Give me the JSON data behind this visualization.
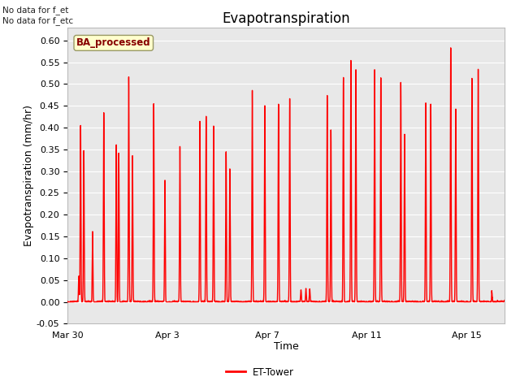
{
  "title": "Evapotranspiration",
  "xlabel": "Time",
  "ylabel": "Evapotranspiration (mm/hr)",
  "ylim": [
    -0.05,
    0.63
  ],
  "yticks": [
    -0.05,
    0.0,
    0.05,
    0.1,
    0.15,
    0.2,
    0.25,
    0.3,
    0.35,
    0.4,
    0.45,
    0.5,
    0.55,
    0.6
  ],
  "line_color": "#ff0000",
  "line_width": 1.0,
  "background_color": "#ffffff",
  "plot_bg_color": "#e8e8e8",
  "grid_color": "#ffffff",
  "legend_label": "ET-Tower",
  "annotation_text": "No data for f_et\nNo data for f_etc",
  "badge_text": "BA_processed",
  "badge_bg": "#ffffcc",
  "badge_edge": "#999966",
  "xtick_labels": [
    "Mar 30",
    "Apr 3",
    "Apr 7",
    "Apr 11",
    "Apr 15"
  ],
  "xtick_positions": [
    0.0,
    4.0,
    8.0,
    12.0,
    16.0
  ],
  "total_days": 17.5,
  "title_fontsize": 12,
  "axis_fontsize": 9,
  "tick_fontsize": 8,
  "peaks": [
    {
      "day": 0.45,
      "val": 0.06
    },
    {
      "day": 0.52,
      "val": 0.41
    },
    {
      "day": 0.65,
      "val": 0.35
    },
    {
      "day": 1.0,
      "val": 0.17
    },
    {
      "day": 1.45,
      "val": 0.44
    },
    {
      "day": 1.95,
      "val": 0.37
    },
    {
      "day": 2.05,
      "val": 0.35
    },
    {
      "day": 2.45,
      "val": 0.52
    },
    {
      "day": 2.6,
      "val": 0.34
    },
    {
      "day": 3.45,
      "val": 0.46
    },
    {
      "day": 3.9,
      "val": 0.29
    },
    {
      "day": 4.5,
      "val": 0.36
    },
    {
      "day": 5.3,
      "val": 0.42
    },
    {
      "day": 5.55,
      "val": 0.43
    },
    {
      "day": 5.85,
      "val": 0.41
    },
    {
      "day": 6.35,
      "val": 0.35
    },
    {
      "day": 6.5,
      "val": 0.31
    },
    {
      "day": 7.4,
      "val": 0.49
    },
    {
      "day": 7.9,
      "val": 0.46
    },
    {
      "day": 8.45,
      "val": 0.46
    },
    {
      "day": 8.9,
      "val": 0.48
    },
    {
      "day": 9.35,
      "val": 0.03
    },
    {
      "day": 9.55,
      "val": 0.03
    },
    {
      "day": 9.7,
      "val": 0.03
    },
    {
      "day": 10.4,
      "val": 0.48
    },
    {
      "day": 10.55,
      "val": 0.4
    },
    {
      "day": 11.05,
      "val": 0.53
    },
    {
      "day": 11.35,
      "val": 0.56
    },
    {
      "day": 11.55,
      "val": 0.54
    },
    {
      "day": 12.3,
      "val": 0.54
    },
    {
      "day": 12.55,
      "val": 0.52
    },
    {
      "day": 13.35,
      "val": 0.51
    },
    {
      "day": 13.5,
      "val": 0.39
    },
    {
      "day": 14.35,
      "val": 0.46
    },
    {
      "day": 14.55,
      "val": 0.46
    },
    {
      "day": 15.35,
      "val": 0.59
    },
    {
      "day": 15.55,
      "val": 0.45
    },
    {
      "day": 16.2,
      "val": 0.53
    },
    {
      "day": 16.45,
      "val": 0.54
    },
    {
      "day": 17.0,
      "val": 0.03
    }
  ]
}
